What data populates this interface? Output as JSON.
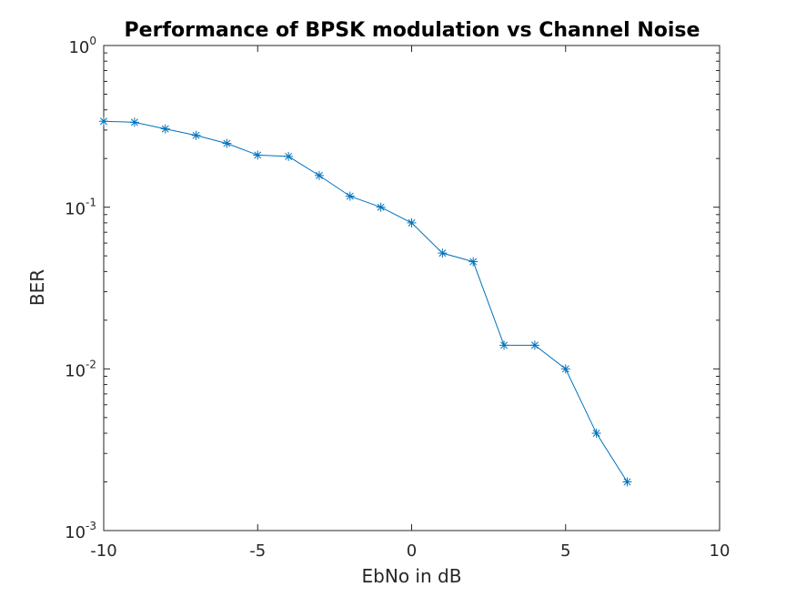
{
  "chart_data": {
    "type": "line",
    "title": "Performance of BPSK modulation vs Channel Noise",
    "xlabel": "EbNo in dB",
    "ylabel": "BER",
    "xlim": [
      -10,
      10
    ],
    "ylim": [
      0.001,
      1
    ],
    "yscale": "log",
    "grid": false,
    "x_ticks": [
      {
        "value": -10,
        "label": "-10"
      },
      {
        "value": -5,
        "label": "-5"
      },
      {
        "value": 0,
        "label": "0"
      },
      {
        "value": 5,
        "label": "5"
      },
      {
        "value": 10,
        "label": "10"
      }
    ],
    "y_ticks": [
      {
        "value": 0.001,
        "base": "10",
        "exp": "-3"
      },
      {
        "value": 0.01,
        "base": "10",
        "exp": "-2"
      },
      {
        "value": 0.1,
        "base": "10",
        "exp": "-1"
      },
      {
        "value": 1,
        "base": "10",
        "exp": "0"
      }
    ],
    "marker": "asterisk",
    "color": "#0072BD",
    "series": [
      {
        "x": [
          -10,
          -9,
          -8,
          -7,
          -6,
          -5,
          -4,
          -3,
          -2,
          -1,
          0,
          1,
          2,
          3,
          4,
          5,
          6,
          7
        ],
        "y": [
          0.34,
          0.335,
          0.305,
          0.278,
          0.248,
          0.21,
          0.206,
          0.157,
          0.117,
          0.1,
          0.08,
          0.052,
          0.046,
          0.014,
          0.014,
          0.01,
          0.004,
          0.002
        ]
      }
    ]
  }
}
